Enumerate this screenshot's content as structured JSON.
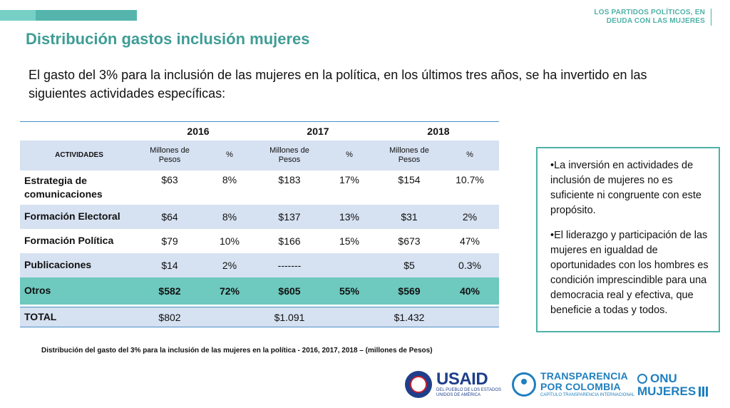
{
  "header": {
    "line1": "LOS PARTIDOS POLÍTICOS, EN",
    "line2": "DEUDA CON LAS MUJERES"
  },
  "title": "Distribución gastos inclusión mujeres",
  "intro": "El gasto del 3% para la inclusión de las mujeres en la política, en los últimos tres años, se ha invertido en las siguientes actividades específicas:",
  "table": {
    "years": [
      "2016",
      "2017",
      "2018"
    ],
    "activities_header": "ACTIVIDADES",
    "amount_header": "Millones de Pesos",
    "pct_header": "%",
    "rows": [
      {
        "name": "Estrategia de comunicaciones",
        "values": [
          "$63",
          "8%",
          "$183",
          "17%",
          "$154",
          "10.7%"
        ]
      },
      {
        "name": "Formación Electoral",
        "values": [
          "$64",
          "8%",
          "$137",
          "13%",
          "$31",
          "2%"
        ]
      },
      {
        "name": "Formación Política",
        "values": [
          "$79",
          "10%",
          "$166",
          "15%",
          "$673",
          "47%"
        ]
      },
      {
        "name": "Publicaciones",
        "values": [
          "$14",
          "2%",
          "-------",
          "",
          "$5",
          "0.3%"
        ]
      },
      {
        "name": "Otros",
        "values": [
          "$582",
          "72%",
          "$605",
          "55%",
          "$569",
          "40%"
        ]
      }
    ],
    "total": {
      "name": "TOTAL",
      "values": [
        "$802",
        "",
        "$1.091",
        "",
        "$1.432",
        ""
      ]
    }
  },
  "caption": "Distribución del gasto del 3% para la inclusión de las mujeres en la política - 2016, 2017, 2018 – (millones de Pesos)",
  "side_box": {
    "p1": "•La inversión en actividades de inclusión de mujeres no es suficiente ni congruente con este propósito.",
    "p2": "•El liderazgo y participación de las mujeres en igualdad de oportunidades con los hombres es condición imprescindible para una democracia real y efectiva, que beneficie a todas y todos."
  },
  "logos": {
    "usaid": "USAID",
    "usaid_sub": "DEL PUEBLO DE LOS ESTADOS UNIDOS DE AMÉRICA",
    "tpc_l1": "TRANSPARENCIA",
    "tpc_l2": "POR COLOMBIA",
    "tpc_sub": "CAPÍTULO TRANSPARENCIA INTERNACIONAL",
    "onu_l1": "ONU",
    "onu_l2": "MUJERES"
  },
  "colors": {
    "accent_teal": "#4fb1a8",
    "row_blue": "#d6e1f1",
    "row_teal": "#6ec9bf",
    "rule_blue": "#4a90c8"
  }
}
